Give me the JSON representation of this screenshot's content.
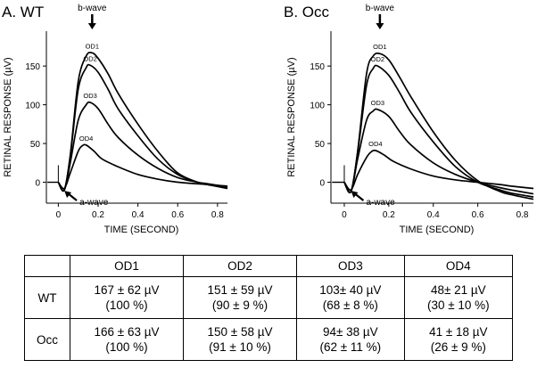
{
  "chart_data": [
    {
      "type": "line",
      "title": "A. WT",
      "xlabel": "TIME (SECOND)",
      "ylabel": "RETINAL RESPONSE (µV)",
      "xlim": [
        -0.06,
        0.85
      ],
      "ylim": [
        -27,
        195
      ],
      "xticks": [
        0,
        0.2,
        0.4,
        0.6,
        0.8
      ],
      "xtick_labels": [
        "0",
        "0.2",
        "0.4",
        "0.6",
        "0.8"
      ],
      "yticks": [
        0,
        50,
        100,
        150
      ],
      "ytick_labels": [
        "0",
        "50",
        "100",
        "150"
      ],
      "annotations": [
        "b-wave",
        "a-wave"
      ],
      "series": [
        {
          "name": "OD1",
          "x": [
            0,
            0.03,
            0.06,
            0.1,
            0.14,
            0.17,
            0.2,
            0.25,
            0.3,
            0.4,
            0.5,
            0.6,
            0.7,
            0.75,
            0.85
          ],
          "values": [
            0,
            -10,
            35,
            130,
            163,
            167,
            160,
            140,
            115,
            75,
            40,
            12,
            0,
            -3,
            -8
          ]
        },
        {
          "name": "OD2",
          "x": [
            0,
            0.03,
            0.06,
            0.1,
            0.14,
            0.16,
            0.2,
            0.25,
            0.3,
            0.4,
            0.5,
            0.6,
            0.7,
            0.75,
            0.85
          ],
          "values": [
            0,
            -10,
            33,
            120,
            148,
            151,
            142,
            120,
            95,
            60,
            30,
            10,
            0,
            -3,
            -7
          ]
        },
        {
          "name": "OD3",
          "x": [
            0,
            0.03,
            0.06,
            0.1,
            0.14,
            0.16,
            0.2,
            0.25,
            0.3,
            0.4,
            0.5,
            0.6,
            0.7,
            0.75,
            0.85
          ],
          "values": [
            0,
            -10,
            25,
            80,
            100,
            103,
            95,
            75,
            58,
            35,
            18,
            6,
            0,
            -2,
            -6
          ]
        },
        {
          "name": "OD4",
          "x": [
            0,
            0.03,
            0.06,
            0.1,
            0.12,
            0.14,
            0.18,
            0.22,
            0.3,
            0.4,
            0.5,
            0.6,
            0.7,
            0.75,
            0.85
          ],
          "values": [
            0,
            -8,
            12,
            40,
            47,
            48,
            40,
            30,
            20,
            10,
            4,
            0,
            -2,
            -3,
            -5
          ]
        }
      ]
    },
    {
      "type": "line",
      "title": "B. Occ",
      "xlabel": "TIME (SECOND)",
      "ylabel": "RETINAL RESPONSE (µV)",
      "xlim": [
        -0.06,
        0.85
      ],
      "ylim": [
        -27,
        195
      ],
      "xticks": [
        0,
        0.2,
        0.4,
        0.6,
        0.8
      ],
      "xtick_labels": [
        "0",
        "0.2",
        "0.4",
        "0.6",
        "0.8"
      ],
      "yticks": [
        0,
        50,
        100,
        150
      ],
      "ytick_labels": [
        "0",
        "50",
        "100",
        "150"
      ],
      "annotations": [
        "b-wave",
        "a-wave"
      ],
      "series": [
        {
          "name": "OD1",
          "x": [
            0,
            0.03,
            0.06,
            0.1,
            0.13,
            0.16,
            0.2,
            0.25,
            0.3,
            0.4,
            0.5,
            0.6,
            0.7,
            0.75,
            0.85
          ],
          "values": [
            0,
            -12,
            40,
            140,
            163,
            166,
            158,
            135,
            110,
            65,
            28,
            2,
            -12,
            -16,
            -22
          ]
        },
        {
          "name": "OD2",
          "x": [
            0,
            0.03,
            0.06,
            0.1,
            0.13,
            0.15,
            0.2,
            0.25,
            0.3,
            0.4,
            0.5,
            0.6,
            0.7,
            0.75,
            0.85
          ],
          "values": [
            0,
            -12,
            38,
            125,
            147,
            150,
            138,
            115,
            90,
            52,
            20,
            0,
            -10,
            -14,
            -19
          ]
        },
        {
          "name": "OD3",
          "x": [
            0,
            0.03,
            0.06,
            0.1,
            0.13,
            0.15,
            0.2,
            0.25,
            0.3,
            0.4,
            0.5,
            0.6,
            0.7,
            0.75,
            0.85
          ],
          "values": [
            0,
            -12,
            30,
            80,
            92,
            94,
            85,
            65,
            48,
            25,
            10,
            0,
            -7,
            -10,
            -15
          ]
        },
        {
          "name": "OD4",
          "x": [
            0,
            0.03,
            0.06,
            0.1,
            0.12,
            0.14,
            0.18,
            0.22,
            0.3,
            0.4,
            0.5,
            0.6,
            0.7,
            0.75,
            0.85
          ],
          "values": [
            0,
            -10,
            10,
            32,
            39,
            41,
            35,
            27,
            17,
            8,
            3,
            0,
            -3,
            -5,
            -8
          ]
        }
      ]
    }
  ],
  "table": {
    "headers": [
      "",
      "OD1",
      "OD2",
      "OD3",
      "OD4"
    ],
    "rows": [
      {
        "label": "WT",
        "cells": [
          [
            "167 ± 62 µV",
            "(100 %)"
          ],
          [
            "151 ± 59 µV",
            "(90 ± 9 %)"
          ],
          [
            "103± 40 µV",
            "(68 ± 8 %)"
          ],
          [
            "48± 21 µV",
            "(30 ± 10 %)"
          ]
        ]
      },
      {
        "label": "Occ",
        "cells": [
          [
            "166 ± 63 µV",
            "(100 %)"
          ],
          [
            "150 ± 58 µV",
            "(91 ± 10 %)"
          ],
          [
            "94± 38 µV",
            "(62 ± 11 %)"
          ],
          [
            "41 ± 18 µV",
            "(26 ± 9 %)"
          ]
        ]
      }
    ]
  }
}
